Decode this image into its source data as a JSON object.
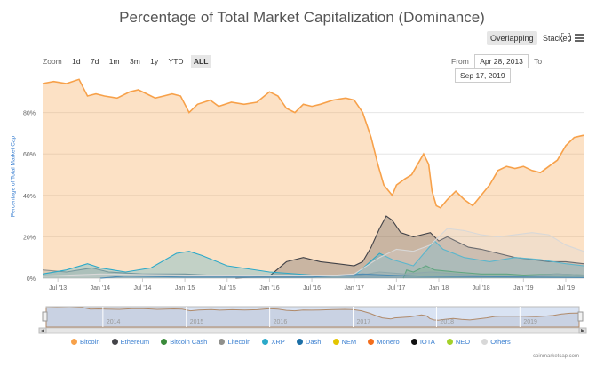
{
  "chart_data": {
    "type": "area",
    "title": "Percentage of Total Market Capitalization (Dominance)",
    "ylabel": "Percentage of Total Market Cap",
    "ylim": [
      0,
      100
    ],
    "y_ticks": [
      "0%",
      "20%",
      "40%",
      "60%",
      "80%"
    ],
    "x_ticks": [
      "Jul '13",
      "Jan '14",
      "Jul '14",
      "Jan '15",
      "Jul '15",
      "Jan '16",
      "Jul '16",
      "Jan '17",
      "Jul '17",
      "Jan '18",
      "Jul '18",
      "Jan '19",
      "Jul '19"
    ],
    "x_range": [
      2013.32,
      2019.71
    ],
    "navigator_years": [
      "2014",
      "2015",
      "2016",
      "2017",
      "2018",
      "2019"
    ],
    "series": [
      {
        "name": "Bitcoin",
        "color": "#f7a14a",
        "points": [
          [
            2013.32,
            94
          ],
          [
            2013.45,
            95
          ],
          [
            2013.6,
            94
          ],
          [
            2013.75,
            96
          ],
          [
            2013.85,
            88
          ],
          [
            2013.95,
            89
          ],
          [
            2014.05,
            88
          ],
          [
            2014.2,
            87
          ],
          [
            2014.35,
            90
          ],
          [
            2014.45,
            91
          ],
          [
            2014.55,
            89
          ],
          [
            2014.65,
            87
          ],
          [
            2014.75,
            88
          ],
          [
            2014.85,
            89
          ],
          [
            2014.95,
            88
          ],
          [
            2015.05,
            80
          ],
          [
            2015.15,
            84
          ],
          [
            2015.3,
            86
          ],
          [
            2015.4,
            83
          ],
          [
            2015.55,
            85
          ],
          [
            2015.7,
            84
          ],
          [
            2015.85,
            85
          ],
          [
            2016.0,
            90
          ],
          [
            2016.1,
            88
          ],
          [
            2016.2,
            82
          ],
          [
            2016.3,
            80
          ],
          [
            2016.4,
            84
          ],
          [
            2016.5,
            83
          ],
          [
            2016.6,
            84
          ],
          [
            2016.75,
            86
          ],
          [
            2016.9,
            87
          ],
          [
            2017.0,
            86
          ],
          [
            2017.1,
            80
          ],
          [
            2017.2,
            68
          ],
          [
            2017.28,
            55
          ],
          [
            2017.35,
            45
          ],
          [
            2017.45,
            40
          ],
          [
            2017.5,
            45
          ],
          [
            2017.6,
            48
          ],
          [
            2017.68,
            50
          ],
          [
            2017.75,
            55
          ],
          [
            2017.82,
            60
          ],
          [
            2017.88,
            55
          ],
          [
            2017.92,
            42
          ],
          [
            2017.97,
            35
          ],
          [
            2018.02,
            34
          ],
          [
            2018.1,
            38
          ],
          [
            2018.2,
            42
          ],
          [
            2018.3,
            38
          ],
          [
            2018.4,
            35
          ],
          [
            2018.5,
            40
          ],
          [
            2018.6,
            45
          ],
          [
            2018.7,
            52
          ],
          [
            2018.8,
            54
          ],
          [
            2018.9,
            53
          ],
          [
            2019.0,
            54
          ],
          [
            2019.1,
            52
          ],
          [
            2019.2,
            51
          ],
          [
            2019.3,
            54
          ],
          [
            2019.4,
            57
          ],
          [
            2019.5,
            64
          ],
          [
            2019.6,
            68
          ],
          [
            2019.71,
            69
          ]
        ]
      },
      {
        "name": "Ethereum",
        "color": "#434348",
        "points": [
          [
            2015.6,
            0
          ],
          [
            2016.0,
            1
          ],
          [
            2016.2,
            8
          ],
          [
            2016.4,
            10
          ],
          [
            2016.6,
            8
          ],
          [
            2016.8,
            7
          ],
          [
            2017.0,
            6
          ],
          [
            2017.1,
            8
          ],
          [
            2017.2,
            15
          ],
          [
            2017.3,
            24
          ],
          [
            2017.38,
            30
          ],
          [
            2017.45,
            28
          ],
          [
            2017.55,
            22
          ],
          [
            2017.7,
            20
          ],
          [
            2017.9,
            22
          ],
          [
            2018.0,
            18
          ],
          [
            2018.1,
            20
          ],
          [
            2018.2,
            18
          ],
          [
            2018.35,
            15
          ],
          [
            2018.5,
            14
          ],
          [
            2018.7,
            12
          ],
          [
            2018.9,
            10
          ],
          [
            2019.1,
            9
          ],
          [
            2019.3,
            8
          ],
          [
            2019.5,
            8
          ],
          [
            2019.71,
            7
          ]
        ]
      },
      {
        "name": "Bitcoin Cash",
        "color": "#3a8a3a",
        "points": [
          [
            2017.58,
            0
          ],
          [
            2017.62,
            4
          ],
          [
            2017.7,
            3
          ],
          [
            2017.85,
            6
          ],
          [
            2017.95,
            4
          ],
          [
            2018.2,
            3
          ],
          [
            2018.5,
            2
          ],
          [
            2018.8,
            2
          ],
          [
            2019.0,
            1.5
          ],
          [
            2019.4,
            2
          ],
          [
            2019.71,
            1.5
          ]
        ]
      },
      {
        "name": "Litecoin",
        "color": "#90908c",
        "points": [
          [
            2013.32,
            4
          ],
          [
            2013.6,
            3
          ],
          [
            2013.9,
            5
          ],
          [
            2014.1,
            3
          ],
          [
            2014.5,
            2
          ],
          [
            2015.0,
            2
          ],
          [
            2015.5,
            1
          ],
          [
            2016.0,
            1
          ],
          [
            2016.5,
            1
          ],
          [
            2017.0,
            1
          ],
          [
            2017.3,
            3
          ],
          [
            2017.6,
            2
          ],
          [
            2017.9,
            3
          ],
          [
            2018.2,
            2
          ],
          [
            2018.6,
            1
          ],
          [
            2019.0,
            1
          ],
          [
            2019.4,
            2
          ],
          [
            2019.71,
            1.5
          ]
        ]
      },
      {
        "name": "XRP",
        "color": "#2ba9c9",
        "points": [
          [
            2013.32,
            2
          ],
          [
            2013.6,
            4
          ],
          [
            2013.85,
            7
          ],
          [
            2014.0,
            5
          ],
          [
            2014.3,
            3
          ],
          [
            2014.6,
            5
          ],
          [
            2014.9,
            12
          ],
          [
            2015.05,
            13
          ],
          [
            2015.2,
            11
          ],
          [
            2015.5,
            6
          ],
          [
            2016.0,
            3
          ],
          [
            2016.5,
            1.5
          ],
          [
            2017.0,
            1
          ],
          [
            2017.3,
            12
          ],
          [
            2017.45,
            9
          ],
          [
            2017.7,
            6
          ],
          [
            2017.95,
            18
          ],
          [
            2018.05,
            14
          ],
          [
            2018.3,
            10
          ],
          [
            2018.6,
            8
          ],
          [
            2018.9,
            10
          ],
          [
            2019.2,
            9
          ],
          [
            2019.5,
            7
          ],
          [
            2019.71,
            6
          ]
        ]
      },
      {
        "name": "Dash",
        "color": "#1c6fa6",
        "points": [
          [
            2014.0,
            0
          ],
          [
            2014.3,
            1
          ],
          [
            2015.0,
            0.5
          ],
          [
            2016.5,
            0.5
          ],
          [
            2017.1,
            2
          ],
          [
            2017.4,
            1.5
          ],
          [
            2017.8,
            1
          ],
          [
            2018.2,
            0.8
          ],
          [
            2019.71,
            0.3
          ]
        ]
      },
      {
        "name": "Others",
        "color": "#d8d8d8",
        "points": [
          [
            2013.32,
            1
          ],
          [
            2014.0,
            2
          ],
          [
            2015.0,
            1.5
          ],
          [
            2016.0,
            1.5
          ],
          [
            2016.8,
            1.5
          ],
          [
            2017.0,
            2
          ],
          [
            2017.3,
            10
          ],
          [
            2017.5,
            14
          ],
          [
            2017.7,
            13
          ],
          [
            2017.9,
            16
          ],
          [
            2018.0,
            20
          ],
          [
            2018.1,
            24
          ],
          [
            2018.3,
            23
          ],
          [
            2018.5,
            21
          ],
          [
            2018.7,
            20
          ],
          [
            2018.9,
            21
          ],
          [
            2019.1,
            22
          ],
          [
            2019.3,
            21
          ],
          [
            2019.5,
            16
          ],
          [
            2019.71,
            13
          ]
        ]
      },
      {
        "name": "NEM",
        "color": "#e3c500",
        "points": []
      },
      {
        "name": "Monero",
        "color": "#f36e1d",
        "points": []
      },
      {
        "name": "IOTA",
        "color": "#111111",
        "points": []
      },
      {
        "name": "NEO",
        "color": "#a4d12a",
        "points": []
      }
    ],
    "legend_order": [
      "Bitcoin",
      "Ethereum",
      "Bitcoin Cash",
      "Litecoin",
      "XRP",
      "Dash",
      "NEM",
      "Monero",
      "IOTA",
      "NEO",
      "Others"
    ]
  },
  "controls": {
    "overlapping_label": "Overlapping",
    "stacked_label": "Stacked",
    "zoom_label": "Zoom",
    "zoom_options": [
      "1d",
      "7d",
      "1m",
      "3m",
      "1y",
      "YTD",
      "ALL"
    ],
    "from_label": "From",
    "from_value": "Apr 28, 2013",
    "to_label": "To",
    "to_value": "Sep 17, 2019"
  },
  "credit": "coinmarketcap.com"
}
